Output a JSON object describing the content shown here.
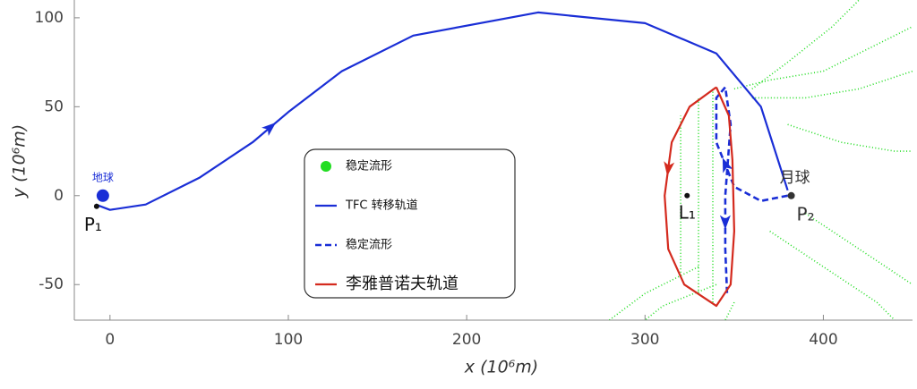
{
  "chart_data": {
    "type": "line",
    "xlabel": "x (10⁶m)",
    "ylabel": "y (10⁶m)",
    "xlim": [
      -20,
      450
    ],
    "ylim": [
      -70,
      110
    ],
    "xticks": [
      0,
      100,
      200,
      300,
      400
    ],
    "yticks": [
      -50,
      0,
      50,
      100
    ],
    "series": [
      {
        "name": "稳定流形",
        "color": "#22dd22",
        "style": "dot",
        "x": [
          320,
          320,
          null,
          330,
          330,
          null,
          338,
          338,
          null,
          350,
          370,
          400,
          430,
          450,
          null,
          360,
          390,
          420,
          450,
          null,
          380,
          410,
          440,
          450,
          null,
          370,
          400,
          430,
          440,
          null,
          390,
          420,
          450,
          null,
          330,
          300,
          280,
          null,
          340,
          310,
          300,
          null,
          350,
          345,
          null,
          360,
          380,
          405,
          420
        ],
        "values": [
          -45,
          45,
          null,
          -55,
          55,
          null,
          -60,
          60,
          null,
          60,
          65,
          70,
          85,
          95,
          null,
          55,
          55,
          60,
          70,
          null,
          40,
          30,
          25,
          25,
          null,
          -20,
          -40,
          -60,
          -70,
          null,
          -10,
          -30,
          -50,
          null,
          -40,
          -55,
          -70,
          null,
          -50,
          -62,
          -70,
          null,
          -60,
          -70,
          null,
          60,
          75,
          95,
          110
        ]
      },
      {
        "name": "TFC 转移轨道",
        "color": "#1a2ed6",
        "style": "solid",
        "x": [
          -8,
          0,
          20,
          50,
          80,
          100,
          130,
          170,
          240,
          300,
          340,
          365,
          380
        ],
        "values": [
          -5,
          -8,
          -5,
          10,
          30,
          47,
          70,
          90,
          103,
          97,
          80,
          50,
          3
        ]
      },
      {
        "name": "稳定流形",
        "color": "#1a2ed6",
        "style": "dash",
        "x": [
          380,
          365,
          350,
          340,
          340,
          345,
          348,
          345,
          345,
          346
        ],
        "values": [
          0,
          -3,
          5,
          30,
          55,
          61,
          40,
          0,
          -30,
          -55
        ]
      },
      {
        "name": "李雅普诺夫轨道",
        "color": "#d42a1e",
        "style": "solid",
        "x": [
          340,
          325,
          315,
          311,
          313,
          322,
          340,
          348,
          350,
          349,
          347,
          340
        ],
        "values": [
          61,
          50,
          30,
          0,
          -30,
          -50,
          -62,
          -50,
          -20,
          20,
          45,
          61
        ]
      }
    ],
    "points": [
      {
        "label": "地球",
        "x": -4,
        "y": 0,
        "color": "#1a2ed6"
      },
      {
        "label": "P₁",
        "x": -7.5,
        "y": -6,
        "color": "#111111"
      },
      {
        "label": "L₁",
        "x": 323.6,
        "y": 0,
        "color": "#111111"
      },
      {
        "label": "P₂",
        "x": 382,
        "y": 0,
        "color": "#333333"
      },
      {
        "label": "月球",
        "x": 382,
        "y": 0,
        "color": "#333333"
      }
    ]
  }
}
